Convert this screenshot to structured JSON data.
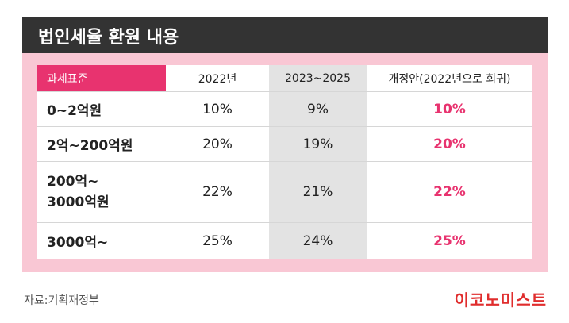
{
  "title": "법인세율 환원 내용",
  "table": {
    "headers": [
      "과세표준",
      "2022년",
      "2023~2025",
      "개정안(2022년으로 회귀)"
    ],
    "rows": [
      {
        "label_line1": "0~2억원",
        "label_line2": "",
        "y2022": "10%",
        "y2023": "9%",
        "proposal": "10%"
      },
      {
        "label_line1": "2억~200억원",
        "label_line2": "",
        "y2022": "20%",
        "y2023": "19%",
        "proposal": "20%"
      },
      {
        "label_line1": "200억~",
        "label_line2": "3000억원",
        "y2022": "22%",
        "y2023": "21%",
        "proposal": "22%"
      },
      {
        "label_line1": "3000억~",
        "label_line2": "",
        "y2022": "25%",
        "y2023": "24%",
        "proposal": "25%"
      }
    ]
  },
  "source": "자료:기획재정부",
  "logo": "이코노미스트",
  "colors": {
    "accent": "#e8336f",
    "panel": "#f9c7d4",
    "title_bg": "#333333",
    "logo": "#e02d2d"
  }
}
